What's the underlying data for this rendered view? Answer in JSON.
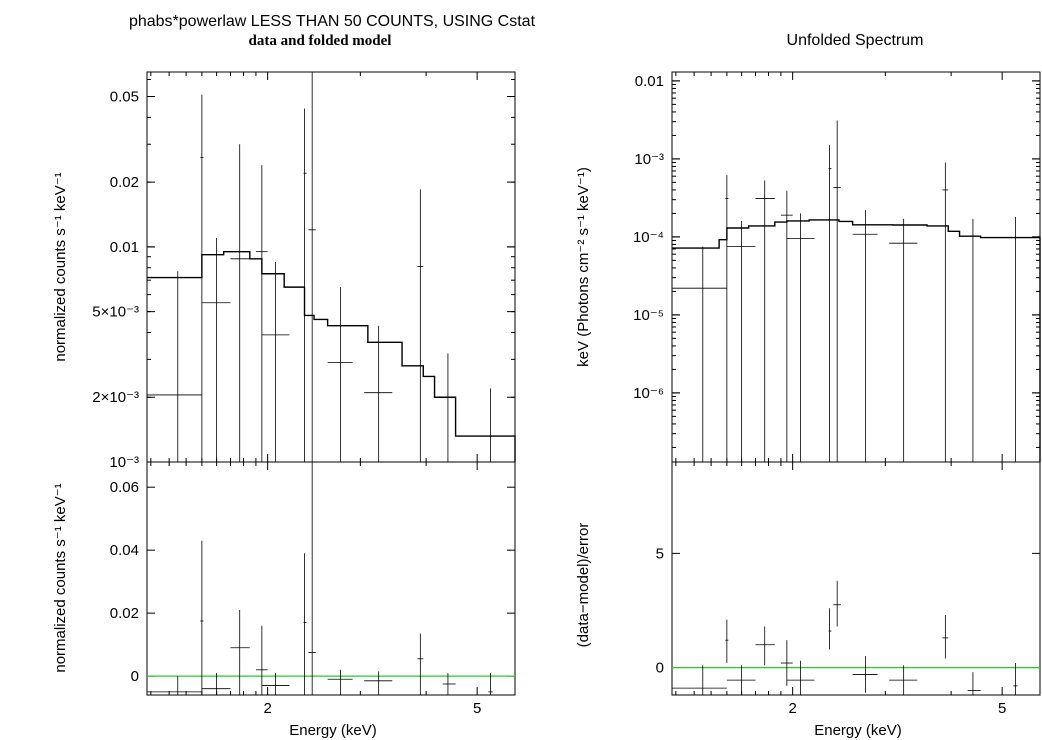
{
  "chart_data": [
    {
      "type": "scatter",
      "title": "phabs*powerlaw LESS THAN 50 COUNTS, USING Cstat",
      "subtitle": "data and folded model",
      "ylabel": "normalized counts s⁻¹ keV⁻¹",
      "xlim": [
        1.18,
        5.9
      ],
      "ylim": [
        0.001,
        0.065
      ],
      "yscale": "log",
      "xscale": "log",
      "yticks": [
        {
          "v": 0.001,
          "label": "10⁻³"
        },
        {
          "v": 0.002,
          "label": "2×10⁻³"
        },
        {
          "v": 0.005,
          "label": "5×10⁻³"
        },
        {
          "v": 0.01,
          "label": "0.01"
        },
        {
          "v": 0.02,
          "label": "0.02"
        },
        {
          "v": 0.05,
          "label": "0.05"
        }
      ],
      "data": [
        {
          "x": 1.35,
          "xlo": 1.18,
          "xhi": 1.5,
          "y": 0.00205,
          "ylo": 0.0009,
          "yhi": 0.0077
        },
        {
          "x": 1.5,
          "xlo": 1.49,
          "xhi": 1.51,
          "y": 0.026,
          "ylo": 0.0009,
          "yhi": 0.051
        },
        {
          "x": 1.6,
          "xlo": 1.5,
          "xhi": 1.7,
          "y": 0.0055,
          "ylo": 0.0009,
          "yhi": 0.011
        },
        {
          "x": 1.77,
          "xlo": 1.7,
          "xhi": 1.85,
          "y": 0.0088,
          "ylo": 0.0009,
          "yhi": 0.03
        },
        {
          "x": 1.95,
          "xlo": 1.9,
          "xhi": 2.0,
          "y": 0.0095,
          "ylo": 0.0009,
          "yhi": 0.024
        },
        {
          "x": 2.07,
          "xlo": 1.95,
          "xhi": 2.2,
          "y": 0.0039,
          "ylo": 0.0009,
          "yhi": 0.0085
        },
        {
          "x": 2.35,
          "xlo": 2.34,
          "xhi": 2.37,
          "y": 0.022,
          "ylo": 0.0009,
          "yhi": 0.044
        },
        {
          "x": 2.43,
          "xlo": 2.39,
          "xhi": 2.47,
          "y": 0.012,
          "ylo": 0.0009,
          "yhi": 0.065
        },
        {
          "x": 2.75,
          "xlo": 2.6,
          "xhi": 2.9,
          "y": 0.0029,
          "ylo": 0.0009,
          "yhi": 0.0065
        },
        {
          "x": 3.25,
          "xlo": 3.05,
          "xhi": 3.45,
          "y": 0.0021,
          "ylo": 0.0009,
          "yhi": 0.0043
        },
        {
          "x": 3.9,
          "xlo": 3.85,
          "xhi": 3.95,
          "y": 0.0081,
          "ylo": 0.0009,
          "yhi": 0.0185
        },
        {
          "x": 4.4,
          "xlo": 4.35,
          "xhi": 4.45,
          "y": 0.0009,
          "ylo": 0.0009,
          "yhi": 0.0032
        },
        {
          "x": 5.3,
          "xlo": 5.25,
          "xhi": 5.35,
          "y": 0.0009,
          "ylo": 0.0009,
          "yhi": 0.0022
        }
      ],
      "model": {
        "edges": [
          1.18,
          1.5,
          1.65,
          1.85,
          1.95,
          2.15,
          2.35,
          2.45,
          2.6,
          3.1,
          3.6,
          3.95,
          4.15,
          4.55,
          5.9
        ],
        "values": [
          0.0072,
          0.0092,
          0.0095,
          0.0088,
          0.0075,
          0.0065,
          0.0048,
          0.0046,
          0.0043,
          0.0036,
          0.0028,
          0.0025,
          0.002,
          0.00132
        ]
      }
    },
    {
      "type": "scatter",
      "ylabel": "normalized counts s⁻¹ keV⁻¹",
      "xlabel": "Energy (keV)",
      "xlim": [
        1.18,
        5.9
      ],
      "ylim": [
        -0.006,
        0.068
      ],
      "xscale": "log",
      "yticks": [
        {
          "v": 0,
          "label": "0"
        },
        {
          "v": 0.02,
          "label": "0.02"
        },
        {
          "v": 0.04,
          "label": "0.04"
        },
        {
          "v": 0.06,
          "label": "0.06"
        }
      ],
      "xticks": [
        {
          "v": 2,
          "label": "2"
        },
        {
          "v": 5,
          "label": "5"
        }
      ],
      "zero_line_color": "#21d11a",
      "data": [
        {
          "x": 1.35,
          "xlo": 1.18,
          "xhi": 1.5,
          "y": -0.005,
          "ylo": -0.006,
          "yhi": 0.0
        },
        {
          "x": 1.5,
          "xlo": 1.49,
          "xhi": 1.51,
          "y": 0.0175,
          "ylo": -0.006,
          "yhi": 0.043
        },
        {
          "x": 1.6,
          "xlo": 1.5,
          "xhi": 1.7,
          "y": -0.004,
          "ylo": -0.006,
          "yhi": 0.001
        },
        {
          "x": 1.77,
          "xlo": 1.7,
          "xhi": 1.85,
          "y": 0.009,
          "ylo": -0.006,
          "yhi": 0.021
        },
        {
          "x": 1.95,
          "xlo": 1.9,
          "xhi": 2.0,
          "y": 0.002,
          "ylo": -0.006,
          "yhi": 0.016
        },
        {
          "x": 2.07,
          "xlo": 1.95,
          "xhi": 2.2,
          "y": -0.003,
          "ylo": -0.006,
          "yhi": 0.001
        },
        {
          "x": 2.35,
          "xlo": 2.34,
          "xhi": 2.37,
          "y": 0.017,
          "ylo": -0.006,
          "yhi": 0.039
        },
        {
          "x": 2.43,
          "xlo": 2.39,
          "xhi": 2.47,
          "y": 0.0075,
          "ylo": -0.006,
          "yhi": 0.068
        },
        {
          "x": 2.75,
          "xlo": 2.6,
          "xhi": 2.9,
          "y": -0.001,
          "ylo": -0.006,
          "yhi": 0.002
        },
        {
          "x": 3.25,
          "xlo": 3.05,
          "xhi": 3.45,
          "y": -0.0015,
          "ylo": -0.006,
          "yhi": 0.0015
        },
        {
          "x": 3.9,
          "xlo": 3.85,
          "xhi": 3.95,
          "y": 0.0055,
          "ylo": -0.006,
          "yhi": 0.0135
        },
        {
          "x": 4.4,
          "xlo": 4.3,
          "xhi": 4.55,
          "y": -0.0025,
          "ylo": -0.006,
          "yhi": 0.001
        },
        {
          "x": 5.3,
          "xlo": 5.25,
          "xhi": 5.35,
          "y": -0.005,
          "ylo": -0.006,
          "yhi": 0.001
        }
      ]
    },
    {
      "type": "scatter",
      "title": "Unfolded Spectrum",
      "ylabel": "keV (Photons cm⁻² s⁻¹ keV⁻¹)",
      "xlim": [
        1.18,
        5.9
      ],
      "ylim": [
        1.3e-07,
        0.013
      ],
      "yscale": "log",
      "xscale": "log",
      "yticks": [
        {
          "v": 1e-06,
          "label": "10⁻⁶"
        },
        {
          "v": 1e-05,
          "label": "10⁻⁵"
        },
        {
          "v": 0.0001,
          "label": "10⁻⁴"
        },
        {
          "v": 0.001,
          "label": "10⁻³"
        },
        {
          "v": 0.01,
          "label": "0.01"
        }
      ],
      "data": [
        {
          "x": 1.35,
          "xlo": 1.18,
          "xhi": 1.5,
          "y": 2.2e-05,
          "ylo": 1.3e-07,
          "yhi": 7.5e-05
        },
        {
          "x": 1.5,
          "xlo": 1.49,
          "xhi": 1.51,
          "y": 0.00031,
          "ylo": 1.3e-07,
          "yhi": 0.00062
        },
        {
          "x": 1.6,
          "xlo": 1.5,
          "xhi": 1.7,
          "y": 7.5e-05,
          "ylo": 1.3e-07,
          "yhi": 0.00016
        },
        {
          "x": 1.77,
          "xlo": 1.7,
          "xhi": 1.85,
          "y": 0.00031,
          "ylo": 1.3e-07,
          "yhi": 0.00053
        },
        {
          "x": 1.95,
          "xlo": 1.9,
          "xhi": 2.0,
          "y": 0.00019,
          "ylo": 1.3e-07,
          "yhi": 0.00039
        },
        {
          "x": 2.07,
          "xlo": 1.95,
          "xhi": 2.2,
          "y": 9.5e-05,
          "ylo": 1.3e-07,
          "yhi": 0.0002
        },
        {
          "x": 2.35,
          "xlo": 2.34,
          "xhi": 2.37,
          "y": 0.00075,
          "ylo": 1.3e-07,
          "yhi": 0.0015
        },
        {
          "x": 2.43,
          "xlo": 2.39,
          "xhi": 2.47,
          "y": 0.00043,
          "ylo": 1.3e-07,
          "yhi": 0.0031
        },
        {
          "x": 2.75,
          "xlo": 2.6,
          "xhi": 2.9,
          "y": 0.000108,
          "ylo": 1.3e-07,
          "yhi": 0.00022
        },
        {
          "x": 3.25,
          "xlo": 3.05,
          "xhi": 3.45,
          "y": 8.3e-05,
          "ylo": 1.3e-07,
          "yhi": 0.00017
        },
        {
          "x": 3.9,
          "xlo": 3.85,
          "xhi": 3.95,
          "y": 0.0004,
          "ylo": 1.3e-07,
          "yhi": 0.0009
        },
        {
          "x": 4.4,
          "xlo": 4.3,
          "xhi": 4.55,
          "y": 1.3e-07,
          "ylo": 1.3e-07,
          "yhi": 0.00017
        },
        {
          "x": 5.3,
          "xlo": 5.25,
          "xhi": 5.35,
          "y": 1.3e-07,
          "ylo": 1.3e-07,
          "yhi": 0.00018
        }
      ],
      "model": {
        "edges": [
          1.18,
          1.45,
          1.5,
          1.65,
          1.85,
          1.95,
          2.15,
          2.35,
          2.45,
          2.6,
          3.1,
          3.6,
          3.95,
          4.15,
          4.55,
          5.9
        ],
        "values": [
          7.2e-05,
          9.2e-05,
          0.00013,
          0.000138,
          0.000155,
          0.00016,
          0.000165,
          0.000165,
          0.000158,
          0.000143,
          0.000142,
          0.000138,
          0.000118,
          0.000102,
          9.8e-05
        ]
      }
    },
    {
      "type": "scatter",
      "ylabel": "(data−model)/error",
      "xlabel": "Energy (keV)",
      "xlim": [
        1.18,
        5.9
      ],
      "ylim": [
        -1.2,
        9.0
      ],
      "xscale": "log",
      "yticks": [
        {
          "v": 0,
          "label": "0"
        },
        {
          "v": 5,
          "label": "5"
        }
      ],
      "xticks": [
        {
          "v": 2,
          "label": "2"
        },
        {
          "v": 5,
          "label": "5"
        }
      ],
      "zero_line_color": "#21d11a",
      "data": [
        {
          "x": 1.35,
          "xlo": 1.18,
          "xhi": 1.5,
          "y": -0.9,
          "ylo": -1.2,
          "yhi": 0.1
        },
        {
          "x": 1.5,
          "xlo": 1.49,
          "xhi": 1.51,
          "y": 1.2,
          "ylo": 0.2,
          "yhi": 2.1
        },
        {
          "x": 1.6,
          "xlo": 1.5,
          "xhi": 1.7,
          "y": -0.55,
          "ylo": -1.2,
          "yhi": 0.1
        },
        {
          "x": 1.77,
          "xlo": 1.7,
          "xhi": 1.85,
          "y": 1.0,
          "ylo": 0.1,
          "yhi": 1.8
        },
        {
          "x": 1.95,
          "xlo": 1.9,
          "xhi": 2.0,
          "y": 0.2,
          "ylo": -0.8,
          "yhi": 1.2
        },
        {
          "x": 2.07,
          "xlo": 1.95,
          "xhi": 2.2,
          "y": -0.55,
          "ylo": -1.2,
          "yhi": 0.3
        },
        {
          "x": 2.35,
          "xlo": 2.34,
          "xhi": 2.37,
          "y": 1.6,
          "ylo": 0.8,
          "yhi": 2.6
        },
        {
          "x": 2.43,
          "xlo": 2.39,
          "xhi": 2.47,
          "y": 2.75,
          "ylo": 1.8,
          "yhi": 3.8
        },
        {
          "x": 2.75,
          "xlo": 2.6,
          "xhi": 2.9,
          "y": -0.3,
          "ylo": -1.1,
          "yhi": 0.5
        },
        {
          "x": 3.25,
          "xlo": 3.05,
          "xhi": 3.45,
          "y": -0.55,
          "ylo": -1.2,
          "yhi": 0.1
        },
        {
          "x": 3.9,
          "xlo": 3.85,
          "xhi": 3.95,
          "y": 1.3,
          "ylo": 0.4,
          "yhi": 2.3
        },
        {
          "x": 4.4,
          "xlo": 4.3,
          "xhi": 4.55,
          "y": -1.0,
          "ylo": -1.2,
          "yhi": -0.2
        },
        {
          "x": 5.3,
          "xlo": 5.25,
          "xhi": 5.35,
          "y": -0.8,
          "ylo": -1.2,
          "yhi": 0.2
        }
      ]
    }
  ]
}
